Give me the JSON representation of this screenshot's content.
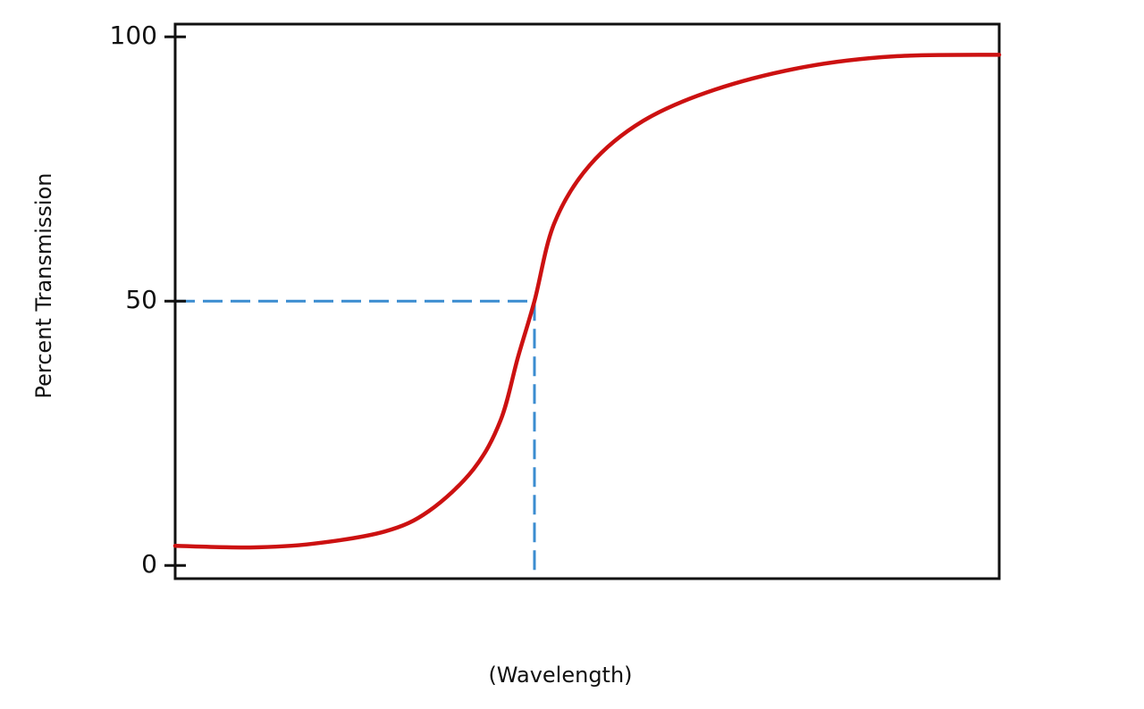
{
  "chart_data": {
    "type": "line",
    "y_label": "Percent Transmission",
    "x_label": "(Wavelength)",
    "x": [
      0,
      9.1,
      16.7,
      25.4,
      30.8,
      36.2,
      39.5,
      41.6,
      43.6,
      46,
      50.3,
      56.8,
      65.5,
      76.4,
      87.2,
      100
    ],
    "series": [
      {
        "color": "#cc1111",
        "values": [
          3.7,
          3.4,
          4.1,
          6.4,
          10.3,
          18.2,
          27.5,
          39.4,
          50,
          64.7,
          75.7,
          84.1,
          90,
          94.3,
          96.3,
          96.6
        ]
      }
    ],
    "reference": {
      "x": 43.6,
      "y": 50,
      "color": "#3a8cd0"
    },
    "xlim": [
      0,
      100
    ],
    "ylim": [
      -2.5,
      102.4
    ],
    "yticks": [
      0,
      50,
      100
    ]
  }
}
